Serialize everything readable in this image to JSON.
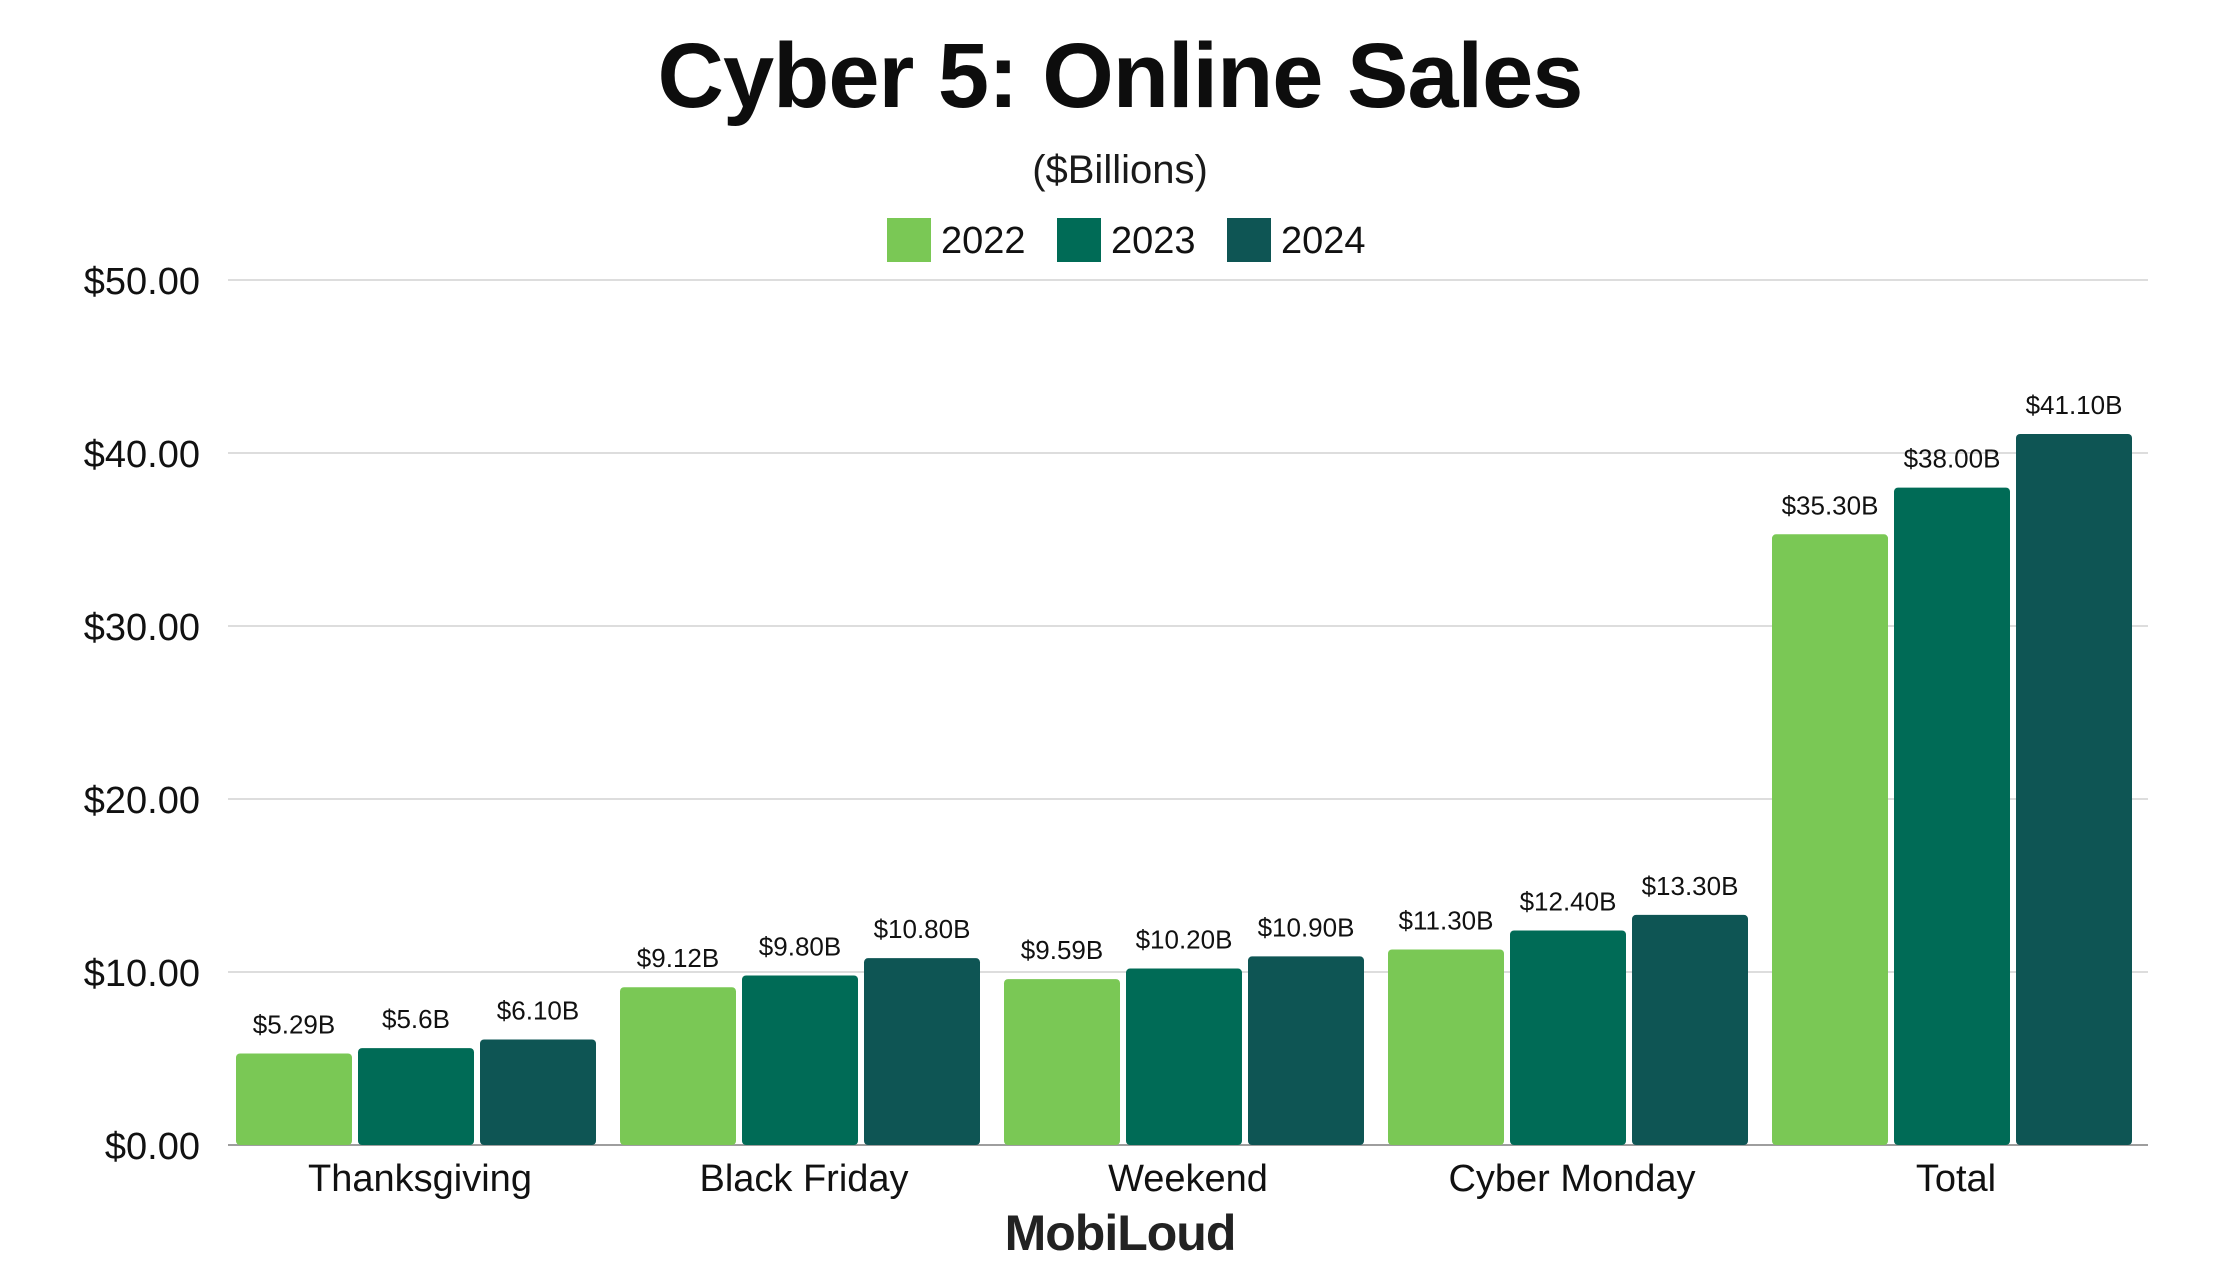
{
  "chart_data": {
    "type": "bar",
    "title": "Cyber 5: Online Sales",
    "subtitle": "($Billions)",
    "categories": [
      "Thanksgiving",
      "Black Friday",
      "Weekend",
      "Cyber Monday",
      "Total"
    ],
    "series": [
      {
        "name": "2022",
        "color": "#7ac855",
        "values": [
          5.29,
          9.12,
          9.59,
          11.3,
          35.3
        ],
        "labels": [
          "$5.29B",
          "$9.12B",
          "$9.59B",
          "$11.30B",
          "$35.30B"
        ]
      },
      {
        "name": "2023",
        "color": "#006b56",
        "values": [
          5.6,
          9.8,
          10.2,
          12.4,
          38.0
        ],
        "labels": [
          "$5.6B",
          "$9.80B",
          "$10.20B",
          "$12.40B",
          "$38.00B"
        ]
      },
      {
        "name": "2024",
        "color": "#0e5554",
        "values": [
          6.1,
          10.8,
          10.9,
          13.3,
          41.1
        ],
        "labels": [
          "$6.10B",
          "$10.80B",
          "$10.90B",
          "$13.30B",
          "$41.10B"
        ]
      }
    ],
    "yticks": [
      {
        "value": 0,
        "label": "$0.00"
      },
      {
        "value": 10,
        "label": "$10.00"
      },
      {
        "value": 20,
        "label": "$20.00"
      },
      {
        "value": 30,
        "label": "$30.00"
      },
      {
        "value": 40,
        "label": "$40.00"
      },
      {
        "value": 50,
        "label": "$50.00"
      }
    ],
    "ylim": [
      0,
      50
    ],
    "xlabel": "",
    "ylabel": "",
    "grid": true,
    "legend_position": "top-center"
  },
  "brand": {
    "name": "MobiLoud"
  }
}
